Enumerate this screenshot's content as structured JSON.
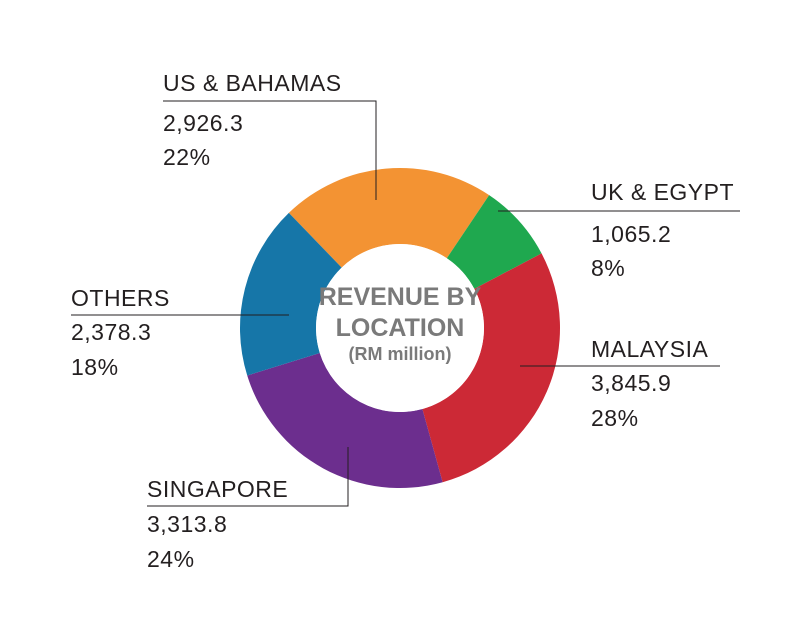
{
  "chart_data": {
    "type": "pie",
    "title_line1": "REVENUE BY",
    "title_line2": "LOCATION",
    "subtitle": "(RM million)",
    "slices": [
      {
        "name": "US & BAHAMAS",
        "value": 2926.3,
        "value_label": "2,926.3",
        "percent_label": "22%",
        "color": "#f39333"
      },
      {
        "name": "UK & EGYPT",
        "value": 1065.2,
        "value_label": "1,065.2",
        "percent_label": "8%",
        "color": "#1fa84f"
      },
      {
        "name": "MALAYSIA",
        "value": 3845.9,
        "value_label": "3,845.9",
        "percent_label": "28%",
        "color": "#cc2936"
      },
      {
        "name": "SINGAPORE",
        "value": 3313.8,
        "value_label": "3,313.8",
        "percent_label": "24%",
        "color": "#6c2e8e"
      },
      {
        "name": "OTHERS",
        "value": 2378.3,
        "value_label": "2,378.3",
        "percent_label": "18%",
        "color": "#1676a8"
      }
    ]
  }
}
